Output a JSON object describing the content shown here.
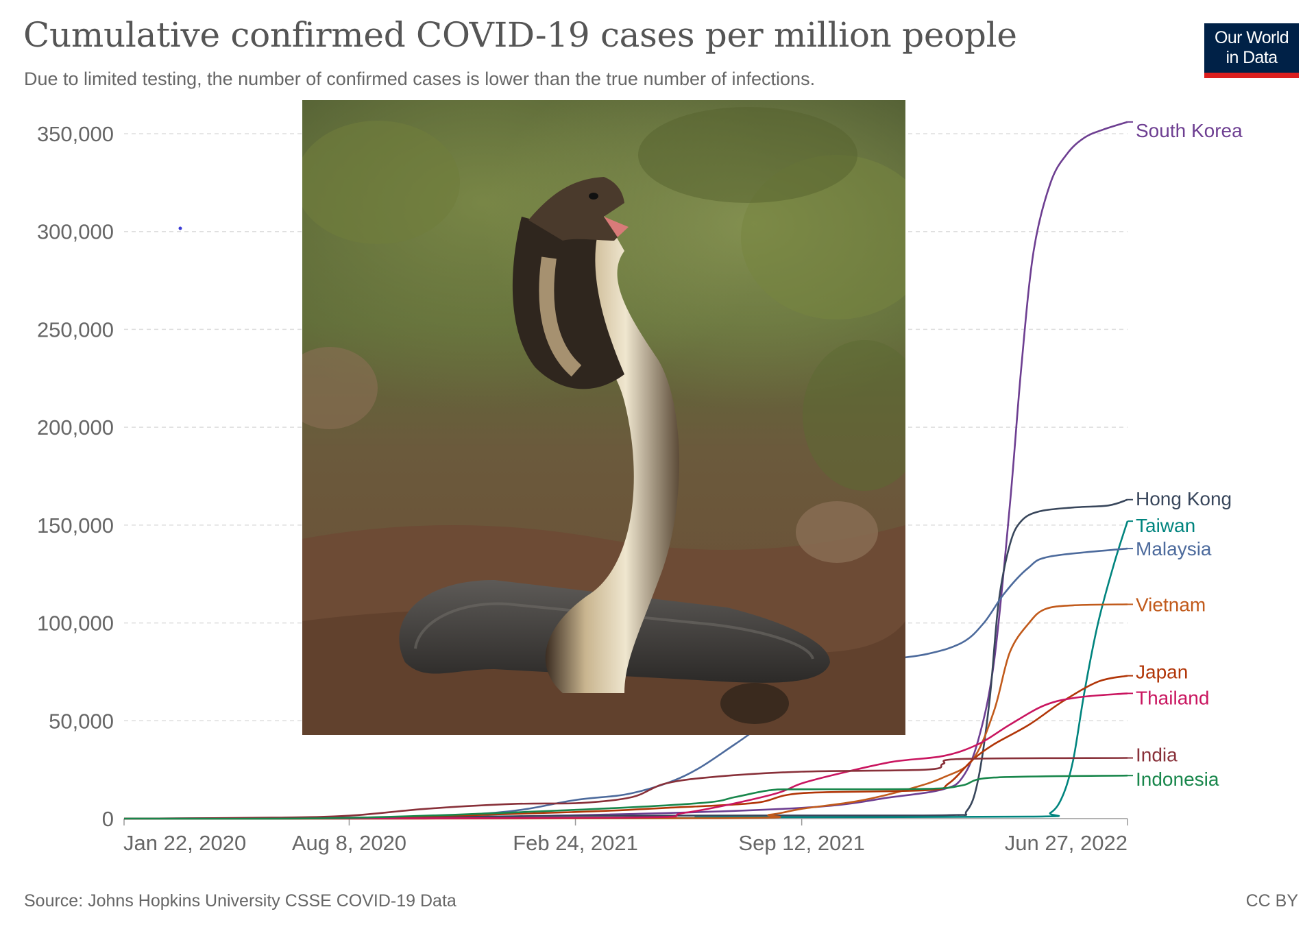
{
  "header": {
    "title": "Cumulative confirmed COVID-19 cases per million people",
    "subtitle": "Due to limited testing, the number of confirmed cases is lower than the true number of infections."
  },
  "logo": {
    "line1": "Our World",
    "line2": "in Data",
    "bg_color": "#002147",
    "accent_color": "#dc1e1e"
  },
  "footer": {
    "source": "Source: Johns Hopkins University CSSE COVID-19 Data",
    "license": "CC BY"
  },
  "photo": {
    "subject": "cobra-photo"
  },
  "chart_data": {
    "type": "line",
    "title": "Cumulative confirmed COVID-19 cases per million people",
    "subtitle": "Due to limited testing, the number of confirmed cases is lower than the true number of infections.",
    "xlabel": "",
    "ylabel": "",
    "x_range": [
      "2020-01-22",
      "2022-06-27"
    ],
    "x_ticks": [
      {
        "date": "2020-01-22",
        "label": "Jan 22, 2020"
      },
      {
        "date": "2020-08-08",
        "label": "Aug 8, 2020"
      },
      {
        "date": "2021-02-24",
        "label": "Feb 24, 2021"
      },
      {
        "date": "2021-09-12",
        "label": "Sep 12, 2021"
      },
      {
        "date": "2022-06-27",
        "label": "Jun 27, 2022"
      }
    ],
    "ylim": [
      0,
      350000
    ],
    "y_ticks": [
      {
        "value": 0,
        "label": "0"
      },
      {
        "value": 50000,
        "label": "50,000"
      },
      {
        "value": 100000,
        "label": "100,000"
      },
      {
        "value": 150000,
        "label": "150,000"
      },
      {
        "value": 200000,
        "label": "200,000"
      },
      {
        "value": 250000,
        "label": "250,000"
      },
      {
        "value": 300000,
        "label": "300,000"
      },
      {
        "value": 350000,
        "label": "350,000"
      }
    ],
    "grid": "horizontal dashed",
    "legend": "labels at line ends (right)",
    "series": [
      {
        "name": "South Korea",
        "color": "#6d3e91",
        "points": [
          [
            "2020-01-22",
            0
          ],
          [
            "2020-08-08",
            300
          ],
          [
            "2021-02-24",
            1700
          ],
          [
            "2021-09-12",
            5500
          ],
          [
            "2021-12-01",
            11000
          ],
          [
            "2022-01-15",
            15000
          ],
          [
            "2022-02-01",
            21000
          ],
          [
            "2022-02-15",
            40000
          ],
          [
            "2022-03-01",
            80000
          ],
          [
            "2022-03-15",
            160000
          ],
          [
            "2022-03-25",
            230000
          ],
          [
            "2022-04-05",
            290000
          ],
          [
            "2022-04-20",
            325000
          ],
          [
            "2022-05-05",
            340000
          ],
          [
            "2022-05-20",
            348000
          ],
          [
            "2022-06-05",
            352000
          ],
          [
            "2022-06-27",
            356000
          ]
        ]
      },
      {
        "name": "Hong Kong",
        "color": "#38465b",
        "points": [
          [
            "2020-01-22",
            0
          ],
          [
            "2020-08-08",
            500
          ],
          [
            "2021-02-24",
            1400
          ],
          [
            "2021-09-12",
            1600
          ],
          [
            "2022-01-20",
            1800
          ],
          [
            "2022-02-05",
            4000
          ],
          [
            "2022-02-15",
            20000
          ],
          [
            "2022-02-25",
            60000
          ],
          [
            "2022-03-05",
            110000
          ],
          [
            "2022-03-15",
            140000
          ],
          [
            "2022-03-25",
            152000
          ],
          [
            "2022-04-10",
            157000
          ],
          [
            "2022-05-10",
            159000
          ],
          [
            "2022-06-10",
            160000
          ],
          [
            "2022-06-27",
            163000
          ]
        ]
      },
      {
        "name": "Taiwan",
        "color": "#00847e",
        "points": [
          [
            "2020-01-22",
            0
          ],
          [
            "2021-05-01",
            200
          ],
          [
            "2021-07-01",
            700
          ],
          [
            "2022-04-01",
            1000
          ],
          [
            "2022-04-20",
            3000
          ],
          [
            "2022-05-01",
            12000
          ],
          [
            "2022-05-10",
            30000
          ],
          [
            "2022-05-20",
            65000
          ],
          [
            "2022-06-01",
            100000
          ],
          [
            "2022-06-15",
            130000
          ],
          [
            "2022-06-27",
            152000
          ]
        ]
      },
      {
        "name": "Malaysia",
        "color": "#4c6a9c",
        "points": [
          [
            "2020-01-22",
            0
          ],
          [
            "2020-08-08",
            300
          ],
          [
            "2020-12-15",
            3000
          ],
          [
            "2021-02-24",
            9500
          ],
          [
            "2021-04-15",
            13000
          ],
          [
            "2021-06-01",
            22000
          ],
          [
            "2021-07-15",
            38000
          ],
          [
            "2021-09-12",
            62000
          ],
          [
            "2021-11-01",
            78000
          ],
          [
            "2021-12-31",
            84000
          ],
          [
            "2022-02-01",
            90000
          ],
          [
            "2022-02-20",
            100000
          ],
          [
            "2022-03-10",
            115000
          ],
          [
            "2022-03-31",
            128000
          ],
          [
            "2022-04-20",
            134000
          ],
          [
            "2022-06-27",
            138000
          ]
        ]
      },
      {
        "name": "Vietnam",
        "color": "#c15a1b",
        "points": [
          [
            "2020-01-22",
            0
          ],
          [
            "2021-07-01",
            200
          ],
          [
            "2021-08-15",
            2000
          ],
          [
            "2021-09-12",
            5000
          ],
          [
            "2021-11-01",
            9000
          ],
          [
            "2021-12-15",
            15000
          ],
          [
            "2022-01-15",
            21000
          ],
          [
            "2022-02-10",
            30000
          ],
          [
            "2022-03-01",
            55000
          ],
          [
            "2022-03-15",
            85000
          ],
          [
            "2022-04-01",
            100000
          ],
          [
            "2022-04-15",
            107000
          ],
          [
            "2022-05-10",
            109000
          ],
          [
            "2022-06-27",
            109500
          ]
        ]
      },
      {
        "name": "Japan",
        "color": "#b13507",
        "points": [
          [
            "2020-01-22",
            0
          ],
          [
            "2020-08-08",
            300
          ],
          [
            "2021-02-24",
            3400
          ],
          [
            "2021-05-15",
            5500
          ],
          [
            "2021-08-01",
            8000
          ],
          [
            "2021-09-12",
            13000
          ],
          [
            "2021-12-31",
            14500
          ],
          [
            "2022-01-20",
            18000
          ],
          [
            "2022-02-10",
            30000
          ],
          [
            "2022-03-01",
            38000
          ],
          [
            "2022-04-01",
            48000
          ],
          [
            "2022-05-01",
            60000
          ],
          [
            "2022-06-01",
            70000
          ],
          [
            "2022-06-27",
            73000
          ]
        ]
      },
      {
        "name": "Thailand",
        "color": "#c9155f",
        "points": [
          [
            "2020-01-22",
            0
          ],
          [
            "2021-04-01",
            500
          ],
          [
            "2021-06-01",
            3000
          ],
          [
            "2021-08-15",
            12000
          ],
          [
            "2021-09-12",
            18000
          ],
          [
            "2021-10-15",
            23000
          ],
          [
            "2021-12-01",
            29000
          ],
          [
            "2022-01-15",
            32000
          ],
          [
            "2022-02-15",
            38000
          ],
          [
            "2022-03-15",
            48000
          ],
          [
            "2022-04-15",
            58000
          ],
          [
            "2022-05-15",
            62000
          ],
          [
            "2022-06-27",
            64000
          ]
        ]
      },
      {
        "name": "India",
        "color": "#883039",
        "points": [
          [
            "2020-01-22",
            0
          ],
          [
            "2020-06-01",
            500
          ],
          [
            "2020-08-08",
            1500
          ],
          [
            "2020-10-15",
            5000
          ],
          [
            "2020-12-31",
            7500
          ],
          [
            "2021-03-01",
            8000
          ],
          [
            "2021-04-15",
            11000
          ],
          [
            "2021-05-15",
            18000
          ],
          [
            "2021-06-30",
            21500
          ],
          [
            "2021-09-12",
            24000
          ],
          [
            "2021-12-31",
            25000
          ],
          [
            "2022-01-15",
            28000
          ],
          [
            "2022-02-01",
            30500
          ],
          [
            "2022-06-27",
            31000
          ]
        ]
      },
      {
        "name": "Indonesia",
        "color": "#18864b",
        "points": [
          [
            "2020-01-22",
            0
          ],
          [
            "2020-08-08",
            400
          ],
          [
            "2021-02-24",
            4500
          ],
          [
            "2021-06-15",
            8000
          ],
          [
            "2021-07-15",
            11000
          ],
          [
            "2021-08-15",
            14500
          ],
          [
            "2021-09-12",
            15000
          ],
          [
            "2021-12-31",
            15200
          ],
          [
            "2022-02-01",
            17000
          ],
          [
            "2022-03-01",
            21000
          ],
          [
            "2022-06-27",
            22000
          ]
        ]
      }
    ]
  }
}
